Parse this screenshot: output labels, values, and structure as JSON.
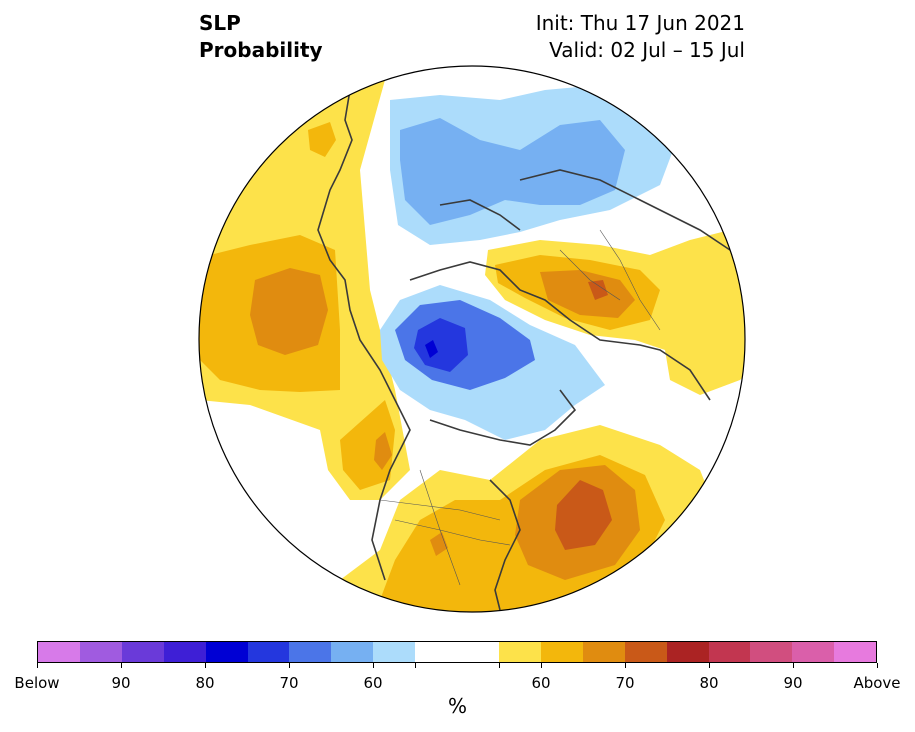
{
  "title": {
    "left_line1": "SLP",
    "left_line2": "Probability",
    "right_line1": "Init: Thu 17 Jun 2021",
    "right_line2": "Valid: 02 Jul – 15 Jul"
  },
  "colorbar": {
    "unit": "%",
    "colors": [
      "#d77ae9",
      "#a05be0",
      "#6a3ad9",
      "#3e1fd6",
      "#0000d4",
      "#2437de",
      "#4b75e8",
      "#76b0f2",
      "#acdcfb",
      "#ffffff",
      "#ffffff",
      "#fde24a",
      "#f3b70c",
      "#e08c10",
      "#c95918",
      "#ab2323",
      "#c23650",
      "#d14e7f",
      "#da5faa",
      "#e77ade"
    ],
    "tick_labels": [
      "Below",
      "90",
      "80",
      "70",
      "60",
      "",
      "",
      "60",
      "70",
      "80",
      "90",
      "Above"
    ]
  },
  "map": {
    "projection": "north polar stereographic",
    "fields": [
      {
        "name": "above-normal-pacific",
        "category": "above",
        "peak_level": "70"
      },
      {
        "name": "above-normal-atlantic",
        "category": "above",
        "peak_level": "70"
      },
      {
        "name": "above-normal-eurasia",
        "category": "above",
        "peak_level": "70"
      },
      {
        "name": "below-normal-arctic",
        "category": "below",
        "peak_level": "80"
      },
      {
        "name": "below-normal-siberia",
        "category": "below",
        "peak_level": "70"
      }
    ]
  }
}
